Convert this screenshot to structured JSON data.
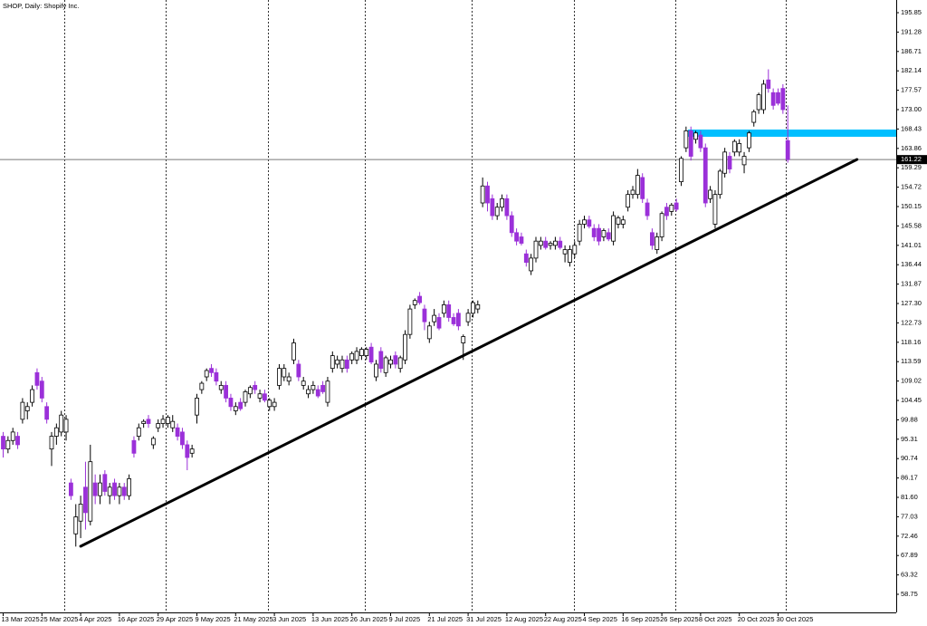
{
  "chart_data": {
    "type": "candlestick",
    "title": "SHOP, Daily: Shopify Inc.",
    "categories": [
      "13 Mar 2025",
      null,
      null,
      null,
      null,
      null,
      null,
      null,
      "25 Mar 2025",
      null,
      null,
      null,
      null,
      null,
      null,
      null,
      "4 Apr 2025",
      null,
      null,
      null,
      null,
      null,
      null,
      null,
      "16 Apr 2025",
      null,
      null,
      null,
      null,
      null,
      null,
      null,
      "29 Apr 2025",
      null,
      null,
      null,
      null,
      null,
      null,
      null,
      "9 May 2025",
      null,
      null,
      null,
      null,
      null,
      null,
      null,
      "21 May 2025",
      null,
      null,
      null,
      null,
      null,
      null,
      null,
      "3 Jun 2025",
      null,
      null,
      null,
      null,
      null,
      null,
      null,
      "13 Jun 2025",
      null,
      null,
      null,
      null,
      null,
      null,
      null,
      "26 Jun 2025",
      null,
      null,
      null,
      null,
      null,
      null,
      null,
      "9 Jul 2025",
      null,
      null,
      null,
      null,
      null,
      null,
      null,
      "21 Jul 2025",
      null,
      null,
      null,
      null,
      null,
      null,
      null,
      "31 Jul 2025",
      null,
      null,
      null,
      null,
      null,
      null,
      null,
      "12 Aug 2025",
      null,
      null,
      null,
      null,
      null,
      null,
      null,
      "22 Aug 2025",
      null,
      null,
      null,
      null,
      null,
      null,
      null,
      "4 Sep 2025",
      null,
      null,
      null,
      null,
      null,
      null,
      null,
      "16 Sep 2025",
      null,
      null,
      null,
      null,
      null,
      null,
      null,
      "26 Sep 2025",
      null,
      null,
      null,
      null,
      null,
      null,
      null,
      "8 Oct 2025",
      null,
      null,
      null,
      null,
      null,
      null,
      null,
      "20 Oct 2025",
      null,
      null,
      null,
      null,
      null,
      null,
      null,
      "30 Oct 2025",
      null,
      null
    ],
    "open": [
      96,
      93,
      95,
      96,
      100,
      102,
      104,
      111,
      109,
      103,
      93,
      96,
      97,
      97,
      85,
      73,
      76,
      84,
      76,
      85,
      82,
      87,
      82,
      85,
      82,
      84,
      82,
      95,
      96,
      99,
      100,
      94,
      98,
      99,
      99,
      98,
      98,
      97,
      94,
      92,
      101,
      107,
      110,
      112,
      111,
      107,
      108,
      105,
      102,
      104,
      104,
      106,
      108,
      105,
      106,
      103,
      103,
      108,
      110,
      109,
      114,
      113,
      108,
      106,
      107,
      107,
      108,
      104,
      112,
      113,
      112,
      114,
      114,
      114,
      115,
      115,
      117,
      110,
      116,
      111,
      113,
      115,
      112,
      114,
      120,
      127,
      129,
      126,
      119,
      123,
      124,
      125,
      127,
      124,
      125,
      118,
      123,
      125,
      126,
      151,
      155,
      152,
      148,
      150,
      152,
      148,
      144,
      143,
      139,
      135,
      138,
      141,
      142,
      141,
      141,
      142,
      139,
      137,
      139,
      142,
      146,
      147,
      145,
      145,
      143,
      144,
      142,
      146,
      146,
      150,
      153,
      153,
      157,
      151,
      144,
      140,
      143,
      150,
      149,
      151,
      156,
      164,
      168,
      166,
      167,
      164,
      152,
      146,
      153,
      158,
      162,
      163,
      163,
      160,
      164,
      170,
      173,
      173,
      180,
      177,
      177,
      178,
      165.7
    ],
    "high": [
      97,
      96,
      98,
      97,
      105,
      104,
      108,
      112,
      110,
      104,
      97,
      99,
      102,
      101,
      86,
      80,
      82,
      90,
      94,
      87,
      87,
      88,
      85,
      86,
      85,
      85,
      87,
      96,
      99,
      100,
      101,
      96,
      100,
      101,
      101,
      101,
      99,
      98,
      95,
      94,
      106,
      109,
      112,
      113,
      112,
      109,
      109,
      106,
      104,
      105,
      107,
      108,
      109,
      107,
      107,
      105,
      105,
      113,
      113,
      111,
      119,
      114,
      110,
      108,
      109,
      108,
      109,
      110,
      116,
      115,
      115,
      115,
      116,
      117,
      117,
      117,
      118,
      114,
      117,
      115,
      115,
      116,
      115,
      121,
      127,
      128.5,
      130,
      127,
      123,
      126,
      125,
      128,
      128,
      125,
      126,
      120,
      126,
      128,
      128,
      157,
      156,
      153,
      151,
      153,
      153,
      149,
      145,
      144,
      140,
      139,
      143,
      143,
      143,
      142,
      143,
      143,
      141,
      141,
      142,
      147,
      148,
      148,
      146,
      146,
      145,
      145,
      149,
      148,
      148,
      154,
      155,
      159,
      158,
      152,
      145,
      144,
      149,
      151,
      151,
      152,
      162,
      169,
      169,
      168,
      168,
      165,
      155,
      154,
      159,
      164,
      163,
      166,
      166,
      163,
      168,
      173,
      177,
      180,
      182.5,
      178,
      178,
      179,
      174
    ],
    "low": [
      91,
      92,
      94,
      93,
      99,
      100,
      103,
      107,
      104,
      99,
      89,
      94,
      96,
      95,
      81,
      70,
      72,
      74,
      75,
      80,
      80,
      82,
      80,
      81,
      80,
      81,
      81,
      91,
      95,
      98,
      98,
      93,
      97,
      98,
      98,
      97,
      95,
      93,
      88,
      91,
      99,
      106,
      109,
      110,
      108,
      106,
      104,
      102,
      101,
      102,
      103,
      105,
      106,
      104,
      104,
      102,
      102,
      107,
      109,
      108,
      113,
      109,
      107,
      105,
      106,
      105,
      106,
      103,
      111,
      112,
      111,
      111,
      113,
      113,
      114,
      114,
      113,
      109,
      111,
      110,
      112,
      112,
      111,
      113,
      119,
      126,
      127,
      121,
      118,
      122,
      121,
      124,
      123,
      122,
      121,
      114,
      122,
      124,
      125,
      150,
      149,
      147,
      147,
      149,
      147,
      143,
      141,
      141,
      136,
      134,
      137,
      140,
      140,
      140,
      140,
      140,
      137,
      136,
      138,
      141,
      145,
      145,
      142,
      141,
      142,
      142,
      141,
      145,
      145,
      149,
      152,
      152,
      151,
      147,
      140,
      139,
      142,
      147,
      148,
      149,
      155,
      163,
      161,
      165,
      163,
      150,
      151,
      145,
      152,
      157,
      158,
      162,
      162,
      158,
      163,
      169,
      172,
      172,
      177,
      173,
      174,
      172,
      160.5
    ],
    "close": [
      93,
      95,
      97,
      94,
      104,
      103,
      107,
      108,
      105,
      100,
      96,
      98,
      101,
      100,
      82,
      77,
      80,
      78,
      90,
      82,
      85,
      83,
      84,
      82,
      84,
      82,
      86,
      92,
      98,
      99.5,
      99,
      95.5,
      99,
      100,
      100.5,
      99.5,
      96,
      94,
      91,
      93,
      105,
      108.5,
      111.5,
      111,
      109,
      108,
      105,
      103,
      103,
      102.5,
      106.5,
      107.5,
      107,
      106,
      104.5,
      104.5,
      104,
      112,
      112,
      110,
      118,
      110,
      109,
      107,
      108,
      105.5,
      106.5,
      109,
      115,
      114,
      114,
      112,
      115.5,
      116,
      116.5,
      116.5,
      113.5,
      113,
      112,
      114.5,
      114,
      113,
      114.5,
      120,
      126,
      128,
      127.5,
      123,
      122,
      124.5,
      121.5,
      127,
      124,
      122.5,
      122,
      119.5,
      125,
      127.5,
      127,
      155,
      151,
      148,
      150,
      152,
      148,
      144,
      142,
      141.5,
      137,
      138,
      142,
      142,
      140.5,
      141.5,
      142,
      140.5,
      140,
      140,
      141,
      146,
      147,
      145.5,
      143,
      142,
      144.5,
      142.5,
      148,
      147.5,
      147,
      153,
      154,
      157.5,
      152,
      148,
      141,
      143,
      148.5,
      148,
      150.5,
      149.5,
      161.5,
      168,
      162,
      167.5,
      164,
      151,
      154,
      153,
      158.5,
      163,
      159,
      165.5,
      165,
      162,
      167.5,
      172.5,
      176.5,
      179,
      178,
      174,
      174.5,
      173,
      161.22
    ],
    "up_color": "#ffffff",
    "down_color": "#9b30d9",
    "ylim": [
      54.48,
      198.84
    ],
    "yticks": [
      195.85,
      191.28,
      186.71,
      182.14,
      177.57,
      {
        "value": 173,
        "label": "173.00"
      },
      168.43,
      163.86,
      159.29,
      154.72,
      150.15,
      145.58,
      141.01,
      136.44,
      131.87,
      {
        "value": 127.3,
        "label": "127.30"
      },
      122.73,
      118.16,
      113.59,
      109.02,
      104.45,
      99.88,
      95.31,
      90.74,
      86.17,
      {
        "value": 81.6,
        "label": "81.60"
      },
      77.03,
      72.46,
      67.89,
      63.32,
      58.75
    ],
    "last_price": 161.22,
    "trendline": {
      "x": [
        16,
        176.3
      ],
      "y": [
        70.07,
        161.25
      ],
      "color": "#000000"
    },
    "zone": {
      "from": 166.6,
      "to": 168.3,
      "start": 141.4,
      "color": "#00bfff"
    }
  }
}
